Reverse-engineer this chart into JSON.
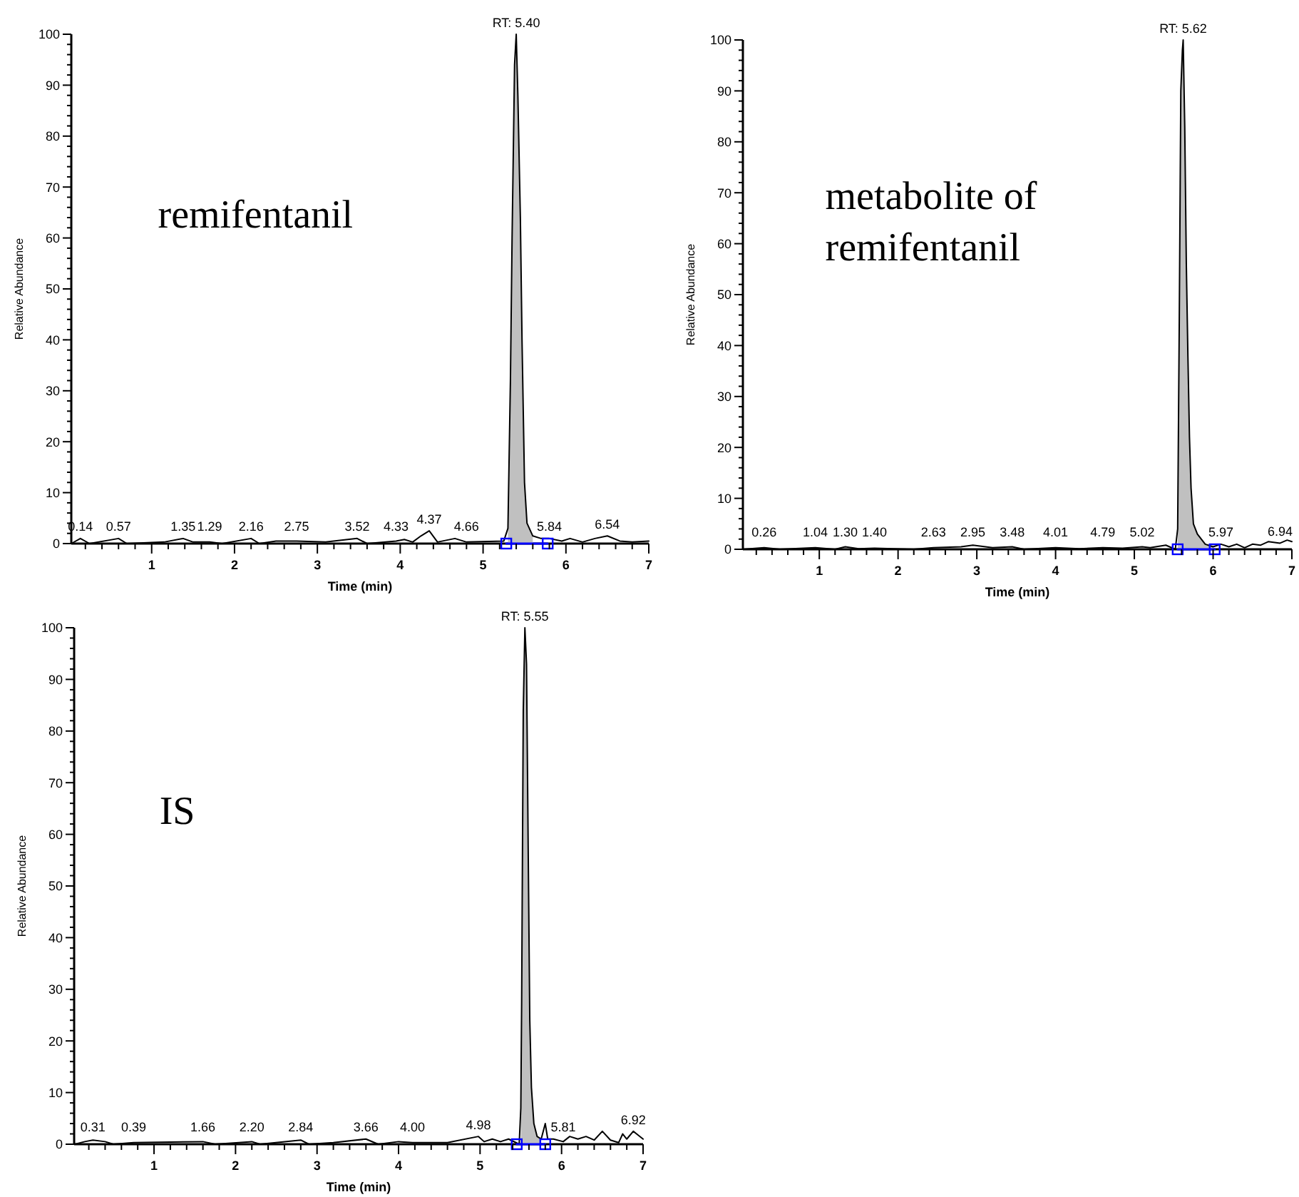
{
  "chart_data": [
    {
      "type": "line",
      "xlabel": "Time (min)",
      "ylabel": "Relative Abundance",
      "xlim": [
        0.03,
        7
      ],
      "ylim": [
        0,
        100
      ],
      "xticks": [
        {
          "value": 0.2,
          "label": null
        },
        {
          "value": 0.4,
          "label": null
        },
        {
          "value": 0.6,
          "label": null
        },
        {
          "value": 0.8,
          "label": null
        },
        1,
        {
          "value": 1.2,
          "label": null
        },
        {
          "value": 1.4,
          "label": null
        },
        {
          "value": 1.6,
          "label": null
        },
        {
          "value": 1.8,
          "label": null
        },
        2,
        {
          "value": 2.2,
          "label": null
        },
        {
          "value": 2.4,
          "label": null
        },
        {
          "value": 2.6,
          "label": null
        },
        {
          "value": 2.8,
          "label": null
        },
        3,
        {
          "value": 3.2,
          "label": null
        },
        {
          "value": 3.4,
          "label": null
        },
        {
          "value": 3.6,
          "label": null
        },
        {
          "value": 3.8,
          "label": null
        },
        4,
        {
          "value": 4.2,
          "label": null
        },
        {
          "value": 4.4,
          "label": null
        },
        {
          "value": 4.6,
          "label": null
        },
        {
          "value": 4.8,
          "label": null
        },
        5,
        {
          "value": 5.2,
          "label": null
        },
        {
          "value": 5.4,
          "label": null
        },
        {
          "value": 5.6,
          "label": null
        },
        {
          "value": 5.8,
          "label": null
        },
        6,
        {
          "value": 6.2,
          "label": null
        },
        {
          "value": 6.4,
          "label": null
        },
        {
          "value": 6.6,
          "label": null
        },
        {
          "value": 6.8,
          "label": null
        },
        7
      ],
      "yticks": [
        0,
        {
          "value": 2,
          "label": null
        },
        {
          "value": 4,
          "label": null
        },
        {
          "value": 6,
          "label": null
        },
        {
          "value": 8,
          "label": null
        },
        10,
        {
          "value": 12,
          "label": null
        },
        {
          "value": 14,
          "label": null
        },
        {
          "value": 16,
          "label": null
        },
        {
          "value": 18,
          "label": null
        },
        20,
        {
          "value": 22,
          "label": null
        },
        {
          "value": 24,
          "label": null
        },
        {
          "value": 26,
          "label": null
        },
        {
          "value": 28,
          "label": null
        },
        30,
        {
          "value": 32,
          "label": null
        },
        {
          "value": 34,
          "label": null
        },
        {
          "value": 36,
          "label": null
        },
        {
          "value": 38,
          "label": null
        },
        40,
        {
          "value": 42,
          "label": null
        },
        {
          "value": 44,
          "label": null
        },
        {
          "value": 46,
          "label": null
        },
        {
          "value": 48,
          "label": null
        },
        50,
        {
          "value": 52,
          "label": null
        },
        {
          "value": 54,
          "label": null
        },
        {
          "value": 56,
          "label": null
        },
        {
          "value": 58,
          "label": null
        },
        60,
        {
          "value": 62,
          "label": null
        },
        {
          "value": 64,
          "label": null
        },
        {
          "value": 66,
          "label": null
        },
        {
          "value": 68,
          "label": null
        },
        70,
        {
          "value": 72,
          "label": null
        },
        {
          "value": 74,
          "label": null
        },
        {
          "value": 76,
          "label": null
        },
        {
          "value": 78,
          "label": null
        },
        80,
        {
          "value": 82,
          "label": null
        },
        {
          "value": 84,
          "label": null
        },
        {
          "value": 86,
          "label": null
        },
        {
          "value": 88,
          "label": null
        },
        90,
        {
          "value": 92,
          "label": null
        },
        {
          "value": 94,
          "label": null
        },
        {
          "value": 96,
          "label": null
        },
        {
          "value": 98,
          "label": null
        },
        100
      ],
      "series": [
        {
          "type": "area",
          "color": "#c0c0c0",
          "x": [
            5.3,
            5.33,
            5.35,
            5.38,
            5.4,
            5.42,
            5.45,
            5.47,
            5.5,
            5.53,
            5.6
          ],
          "values": [
            3,
            32,
            60,
            94,
            100,
            88,
            64,
            40,
            12,
            4,
            1.5
          ]
        },
        {
          "type": "line",
          "color": "#000000",
          "x": [
            0.03,
            0.14,
            0.25,
            0.6,
            0.7,
            1.15,
            1.38,
            1.5,
            1.7,
            1.85,
            2.2,
            2.3,
            2.5,
            2.75,
            3.1,
            3.48,
            3.6,
            3.95,
            4.05,
            4.15,
            4.25,
            4.35,
            4.45,
            4.66,
            4.8,
            5.25,
            5.3,
            5.33,
            5.35,
            5.38,
            5.4,
            5.42,
            5.45,
            5.47,
            5.5,
            5.53,
            5.6,
            5.7,
            5.8,
            5.95,
            6.05,
            6.2,
            6.35,
            6.5,
            6.65,
            6.8,
            7
          ],
          "values": [
            0,
            1,
            0,
            1,
            0,
            0.3,
            1,
            0.3,
            0.3,
            0,
            1,
            0,
            0.5,
            0.5,
            0.3,
            1,
            0,
            0.5,
            0.8,
            0.3,
            1.5,
            2.5,
            0.3,
            1,
            0.3,
            0.5,
            3,
            32,
            60,
            94,
            100,
            88,
            64,
            40,
            12,
            4,
            1.5,
            1,
            1,
            0.5,
            1,
            0.3,
            1,
            1.5,
            0.5,
            0.3,
            0.5
          ]
        },
        {
          "type": "line",
          "color": "#0000ff",
          "marker": "square",
          "x": [
            5.28,
            5.78
          ],
          "values": [
            0,
            0
          ]
        }
      ],
      "annotations": [
        "remifentanil",
        {
          "text": "RT: 5.40",
          "x": 5.4,
          "y": 100
        },
        {
          "text": "0.14",
          "x": 0.14,
          "y": 1
        },
        {
          "text": "0.57",
          "x": 0.6,
          "y": 1
        },
        {
          "text": "1.35",
          "x": 1.38,
          "y": 1
        },
        {
          "text": "1.29",
          "x": 1.7,
          "y": 0.3
        },
        {
          "text": "2.16",
          "x": 2.2,
          "y": 1
        },
        {
          "text": "2.75",
          "x": 2.75,
          "y": 0.5
        },
        {
          "text": "3.52",
          "x": 3.48,
          "y": 1
        },
        {
          "text": "4.33",
          "x": 3.95,
          "y": 0.5
        },
        {
          "text": "4.37",
          "x": 4.35,
          "y": 2.5
        },
        {
          "text": "4.66",
          "x": 4.8,
          "y": 0.3
        },
        {
          "text": "5.84",
          "x": 5.8,
          "y": 1
        },
        {
          "text": "6.54",
          "x": 6.5,
          "y": 1.5
        }
      ]
    },
    {
      "type": "line",
      "xlabel": "Time (min)",
      "ylabel": "Relative Abundance",
      "xlim": [
        0.03,
        7
      ],
      "ylim": [
        0,
        100
      ],
      "xticks": [
        {
          "value": 0.2,
          "label": null
        },
        {
          "value": 0.4,
          "label": null
        },
        {
          "value": 0.6,
          "label": null
        },
        {
          "value": 0.8,
          "label": null
        },
        1,
        {
          "value": 1.2,
          "label": null
        },
        {
          "value": 1.4,
          "label": null
        },
        {
          "value": 1.6,
          "label": null
        },
        {
          "value": 1.8,
          "label": null
        },
        2,
        {
          "value": 2.2,
          "label": null
        },
        {
          "value": 2.4,
          "label": null
        },
        {
          "value": 2.6,
          "label": null
        },
        {
          "value": 2.8,
          "label": null
        },
        3,
        {
          "value": 3.2,
          "label": null
        },
        {
          "value": 3.4,
          "label": null
        },
        {
          "value": 3.6,
          "label": null
        },
        {
          "value": 3.8,
          "label": null
        },
        4,
        {
          "value": 4.2,
          "label": null
        },
        {
          "value": 4.4,
          "label": null
        },
        {
          "value": 4.6,
          "label": null
        },
        {
          "value": 4.8,
          "label": null
        },
        5,
        {
          "value": 5.2,
          "label": null
        },
        {
          "value": 5.4,
          "label": null
        },
        {
          "value": 5.6,
          "label": null
        },
        {
          "value": 5.8,
          "label": null
        },
        6,
        {
          "value": 6.2,
          "label": null
        },
        {
          "value": 6.4,
          "label": null
        },
        {
          "value": 6.6,
          "label": null
        },
        {
          "value": 6.8,
          "label": null
        },
        7
      ],
      "yticks": [
        0,
        {
          "value": 2,
          "label": null
        },
        {
          "value": 4,
          "label": null
        },
        {
          "value": 6,
          "label": null
        },
        {
          "value": 8,
          "label": null
        },
        10,
        {
          "value": 12,
          "label": null
        },
        {
          "value": 14,
          "label": null
        },
        {
          "value": 16,
          "label": null
        },
        {
          "value": 18,
          "label": null
        },
        20,
        {
          "value": 22,
          "label": null
        },
        {
          "value": 24,
          "label": null
        },
        {
          "value": 26,
          "label": null
        },
        {
          "value": 28,
          "label": null
        },
        30,
        {
          "value": 32,
          "label": null
        },
        {
          "value": 34,
          "label": null
        },
        {
          "value": 36,
          "label": null
        },
        {
          "value": 38,
          "label": null
        },
        40,
        {
          "value": 42,
          "label": null
        },
        {
          "value": 44,
          "label": null
        },
        {
          "value": 46,
          "label": null
        },
        {
          "value": 48,
          "label": null
        },
        50,
        {
          "value": 52,
          "label": null
        },
        {
          "value": 54,
          "label": null
        },
        {
          "value": 56,
          "label": null
        },
        {
          "value": 58,
          "label": null
        },
        60,
        {
          "value": 62,
          "label": null
        },
        {
          "value": 64,
          "label": null
        },
        {
          "value": 66,
          "label": null
        },
        {
          "value": 68,
          "label": null
        },
        70,
        {
          "value": 72,
          "label": null
        },
        {
          "value": 74,
          "label": null
        },
        {
          "value": 76,
          "label": null
        },
        {
          "value": 78,
          "label": null
        },
        80,
        {
          "value": 82,
          "label": null
        },
        {
          "value": 84,
          "label": null
        },
        {
          "value": 86,
          "label": null
        },
        {
          "value": 88,
          "label": null
        },
        90,
        {
          "value": 92,
          "label": null
        },
        {
          "value": 94,
          "label": null
        },
        {
          "value": 96,
          "label": null
        },
        {
          "value": 98,
          "label": null
        },
        100
      ],
      "series": [
        {
          "type": "area",
          "color": "#c0c0c0",
          "x": [
            5.55,
            5.57,
            5.59,
            5.61,
            5.62,
            5.64,
            5.66,
            5.68,
            5.7,
            5.72,
            5.75,
            5.8,
            5.9,
            6
          ],
          "values": [
            4,
            44,
            90,
            98,
            100,
            83,
            56,
            38,
            22,
            12,
            5,
            3,
            1,
            0.5
          ]
        },
        {
          "type": "line",
          "color": "#000000",
          "x": [
            0.03,
            0.3,
            0.5,
            0.95,
            1.2,
            1.33,
            1.5,
            1.7,
            2.2,
            2.45,
            2.8,
            2.95,
            3.2,
            3.45,
            3.6,
            4,
            4.3,
            4.6,
            4.85,
            5.1,
            5.2,
            5.4,
            5.52,
            5.55,
            5.57,
            5.59,
            5.61,
            5.62,
            5.64,
            5.66,
            5.68,
            5.7,
            5.72,
            5.75,
            5.8,
            5.9,
            6,
            6.1,
            6.2,
            6.3,
            6.4,
            6.5,
            6.6,
            6.7,
            6.85,
            6.94,
            7
          ],
          "values": [
            0,
            0.3,
            0,
            0.3,
            0,
            0.5,
            0.1,
            0.2,
            0,
            0.3,
            0.5,
            0.8,
            0.3,
            0.5,
            0,
            0.3,
            0.1,
            0.3,
            0.2,
            0.5,
            0.3,
            0.8,
            0,
            4,
            44,
            90,
            98,
            100,
            83,
            56,
            38,
            22,
            12,
            5,
            3,
            1,
            0.5,
            1,
            0.5,
            1,
            0.3,
            1,
            0.8,
            1.5,
            1.2,
            1.8,
            1.5
          ]
        },
        {
          "type": "line",
          "color": "#0000ff",
          "marker": "square",
          "x": [
            5.55,
            6.02
          ],
          "values": [
            0,
            0
          ]
        }
      ],
      "annotations": [
        "metabolite of remifentanil",
        {
          "text": "RT: 5.62",
          "x": 5.62,
          "y": 100
        },
        {
          "text": "0.26",
          "x": 0.3,
          "y": 0.3
        },
        {
          "text": "1.04",
          "x": 0.95,
          "y": 0.3
        },
        {
          "text": "1.30",
          "x": 1.33,
          "y": 0.5
        },
        {
          "text": "1.40",
          "x": 1.7,
          "y": 0.2
        },
        {
          "text": "2.63",
          "x": 2.45,
          "y": 0.3
        },
        {
          "text": "2.95",
          "x": 2.95,
          "y": 0.8
        },
        {
          "text": "3.48",
          "x": 3.45,
          "y": 0.5
        },
        {
          "text": "4.01",
          "x": 4,
          "y": 0.3
        },
        {
          "text": "4.79",
          "x": 4.6,
          "y": 0.3
        },
        {
          "text": "5.02",
          "x": 5.1,
          "y": 0.5
        },
        {
          "text": "5.97",
          "x": 6.1,
          "y": 1
        },
        {
          "text": "6.94",
          "x": 6.85,
          "y": 1.2
        }
      ]
    },
    {
      "type": "line",
      "xlabel": "Time (min)",
      "ylabel": "Relative Abundance",
      "xlim": [
        0.02,
        7
      ],
      "ylim": [
        0,
        100
      ],
      "xticks": [
        {
          "value": 0.2,
          "label": null
        },
        {
          "value": 0.4,
          "label": null
        },
        {
          "value": 0.6,
          "label": null
        },
        {
          "value": 0.8,
          "label": null
        },
        1,
        {
          "value": 1.2,
          "label": null
        },
        {
          "value": 1.4,
          "label": null
        },
        {
          "value": 1.6,
          "label": null
        },
        {
          "value": 1.8,
          "label": null
        },
        2,
        {
          "value": 2.2,
          "label": null
        },
        {
          "value": 2.4,
          "label": null
        },
        {
          "value": 2.6,
          "label": null
        },
        {
          "value": 2.8,
          "label": null
        },
        3,
        {
          "value": 3.2,
          "label": null
        },
        {
          "value": 3.4,
          "label": null
        },
        {
          "value": 3.6,
          "label": null
        },
        {
          "value": 3.8,
          "label": null
        },
        4,
        {
          "value": 4.2,
          "label": null
        },
        {
          "value": 4.4,
          "label": null
        },
        {
          "value": 4.6,
          "label": null
        },
        {
          "value": 4.8,
          "label": null
        },
        5,
        {
          "value": 5.2,
          "label": null
        },
        {
          "value": 5.4,
          "label": null
        },
        {
          "value": 5.6,
          "label": null
        },
        {
          "value": 5.8,
          "label": null
        },
        6,
        {
          "value": 6.2,
          "label": null
        },
        {
          "value": 6.4,
          "label": null
        },
        {
          "value": 6.6,
          "label": null
        },
        {
          "value": 6.8,
          "label": null
        },
        7
      ],
      "yticks": [
        0,
        {
          "value": 2,
          "label": null
        },
        {
          "value": 4,
          "label": null
        },
        {
          "value": 6,
          "label": null
        },
        {
          "value": 8,
          "label": null
        },
        10,
        {
          "value": 12,
          "label": null
        },
        {
          "value": 14,
          "label": null
        },
        {
          "value": 16,
          "label": null
        },
        {
          "value": 18,
          "label": null
        },
        20,
        {
          "value": 22,
          "label": null
        },
        {
          "value": 24,
          "label": null
        },
        {
          "value": 26,
          "label": null
        },
        {
          "value": 28,
          "label": null
        },
        30,
        {
          "value": 32,
          "label": null
        },
        {
          "value": 34,
          "label": null
        },
        {
          "value": 36,
          "label": null
        },
        {
          "value": 38,
          "label": null
        },
        40,
        {
          "value": 42,
          "label": null
        },
        {
          "value": 44,
          "label": null
        },
        {
          "value": 46,
          "label": null
        },
        {
          "value": 48,
          "label": null
        },
        50,
        {
          "value": 52,
          "label": null
        },
        {
          "value": 54,
          "label": null
        },
        {
          "value": 56,
          "label": null
        },
        {
          "value": 58,
          "label": null
        },
        60,
        {
          "value": 62,
          "label": null
        },
        {
          "value": 64,
          "label": null
        },
        {
          "value": 66,
          "label": null
        },
        {
          "value": 68,
          "label": null
        },
        70,
        {
          "value": 72,
          "label": null
        },
        {
          "value": 74,
          "label": null
        },
        {
          "value": 76,
          "label": null
        },
        {
          "value": 78,
          "label": null
        },
        80,
        {
          "value": 82,
          "label": null
        },
        {
          "value": 84,
          "label": null
        },
        {
          "value": 86,
          "label": null
        },
        {
          "value": 88,
          "label": null
        },
        90,
        {
          "value": 92,
          "label": null
        },
        {
          "value": 94,
          "label": null
        },
        {
          "value": 96,
          "label": null
        },
        {
          "value": 98,
          "label": null
        },
        100
      ],
      "series": [
        {
          "type": "area",
          "color": "#c0c0c0",
          "x": [
            5.5,
            5.51,
            5.53,
            5.55,
            5.57,
            5.59,
            5.61,
            5.63,
            5.66,
            5.7,
            5.75
          ],
          "values": [
            7,
            27,
            84,
            100,
            93,
            58,
            24,
            11,
            4,
            1.5,
            1
          ]
        },
        {
          "type": "line",
          "color": "#000000",
          "x": [
            0.03,
            0.15,
            0.25,
            0.4,
            0.5,
            0.75,
            1.6,
            1.75,
            2.2,
            2.3,
            2.8,
            2.9,
            3.2,
            3.6,
            3.75,
            4,
            4.17,
            4.6,
            4.98,
            5.05,
            5.15,
            5.25,
            5.35,
            5.48,
            5.5,
            5.51,
            5.53,
            5.55,
            5.57,
            5.59,
            5.61,
            5.63,
            5.66,
            5.7,
            5.75,
            5.8,
            5.83,
            5.9,
            6.02,
            6.1,
            6.2,
            6.3,
            6.4,
            6.5,
            6.6,
            6.7,
            6.75,
            6.8,
            6.88,
            6.92,
            7
          ],
          "values": [
            0,
            0.5,
            0.8,
            0.5,
            0,
            0.3,
            0.5,
            0,
            0.5,
            0,
            0.8,
            0,
            0.3,
            1,
            0,
            0.5,
            0.3,
            0.3,
            1.5,
            0.5,
            1,
            0.5,
            1,
            0,
            7,
            27,
            84,
            100,
            93,
            58,
            24,
            11,
            4,
            1.5,
            1,
            4,
            1,
            1,
            0.5,
            1.5,
            1,
            1.5,
            0.8,
            2.5,
            0.8,
            0.3,
            2,
            1,
            2.5,
            2,
            1
          ]
        },
        {
          "type": "line",
          "color": "#0000ff",
          "marker": "square",
          "x": [
            5.45,
            5.8
          ],
          "values": [
            0,
            0
          ]
        }
      ],
      "annotations": [
        "IS",
        {
          "text": "RT: 5.55",
          "x": 5.55,
          "y": 100
        },
        {
          "text": "0.31",
          "x": 0.25,
          "y": 0.8
        },
        {
          "text": "0.39",
          "x": 0.75,
          "y": 0.3
        },
        {
          "text": "1.66",
          "x": 1.6,
          "y": 0.5
        },
        {
          "text": "2.20",
          "x": 2.2,
          "y": 0.5
        },
        {
          "text": "2.84",
          "x": 2.8,
          "y": 0.8
        },
        {
          "text": "3.66",
          "x": 3.6,
          "y": 1
        },
        {
          "text": "4.00",
          "x": 4.17,
          "y": 0.3
        },
        {
          "text": "4.98",
          "x": 4.98,
          "y": 1.5
        },
        {
          "text": "5.81",
          "x": 6.02,
          "y": 0.5
        },
        {
          "text": "6.92",
          "x": 6.88,
          "y": 2.5
        }
      ]
    }
  ]
}
